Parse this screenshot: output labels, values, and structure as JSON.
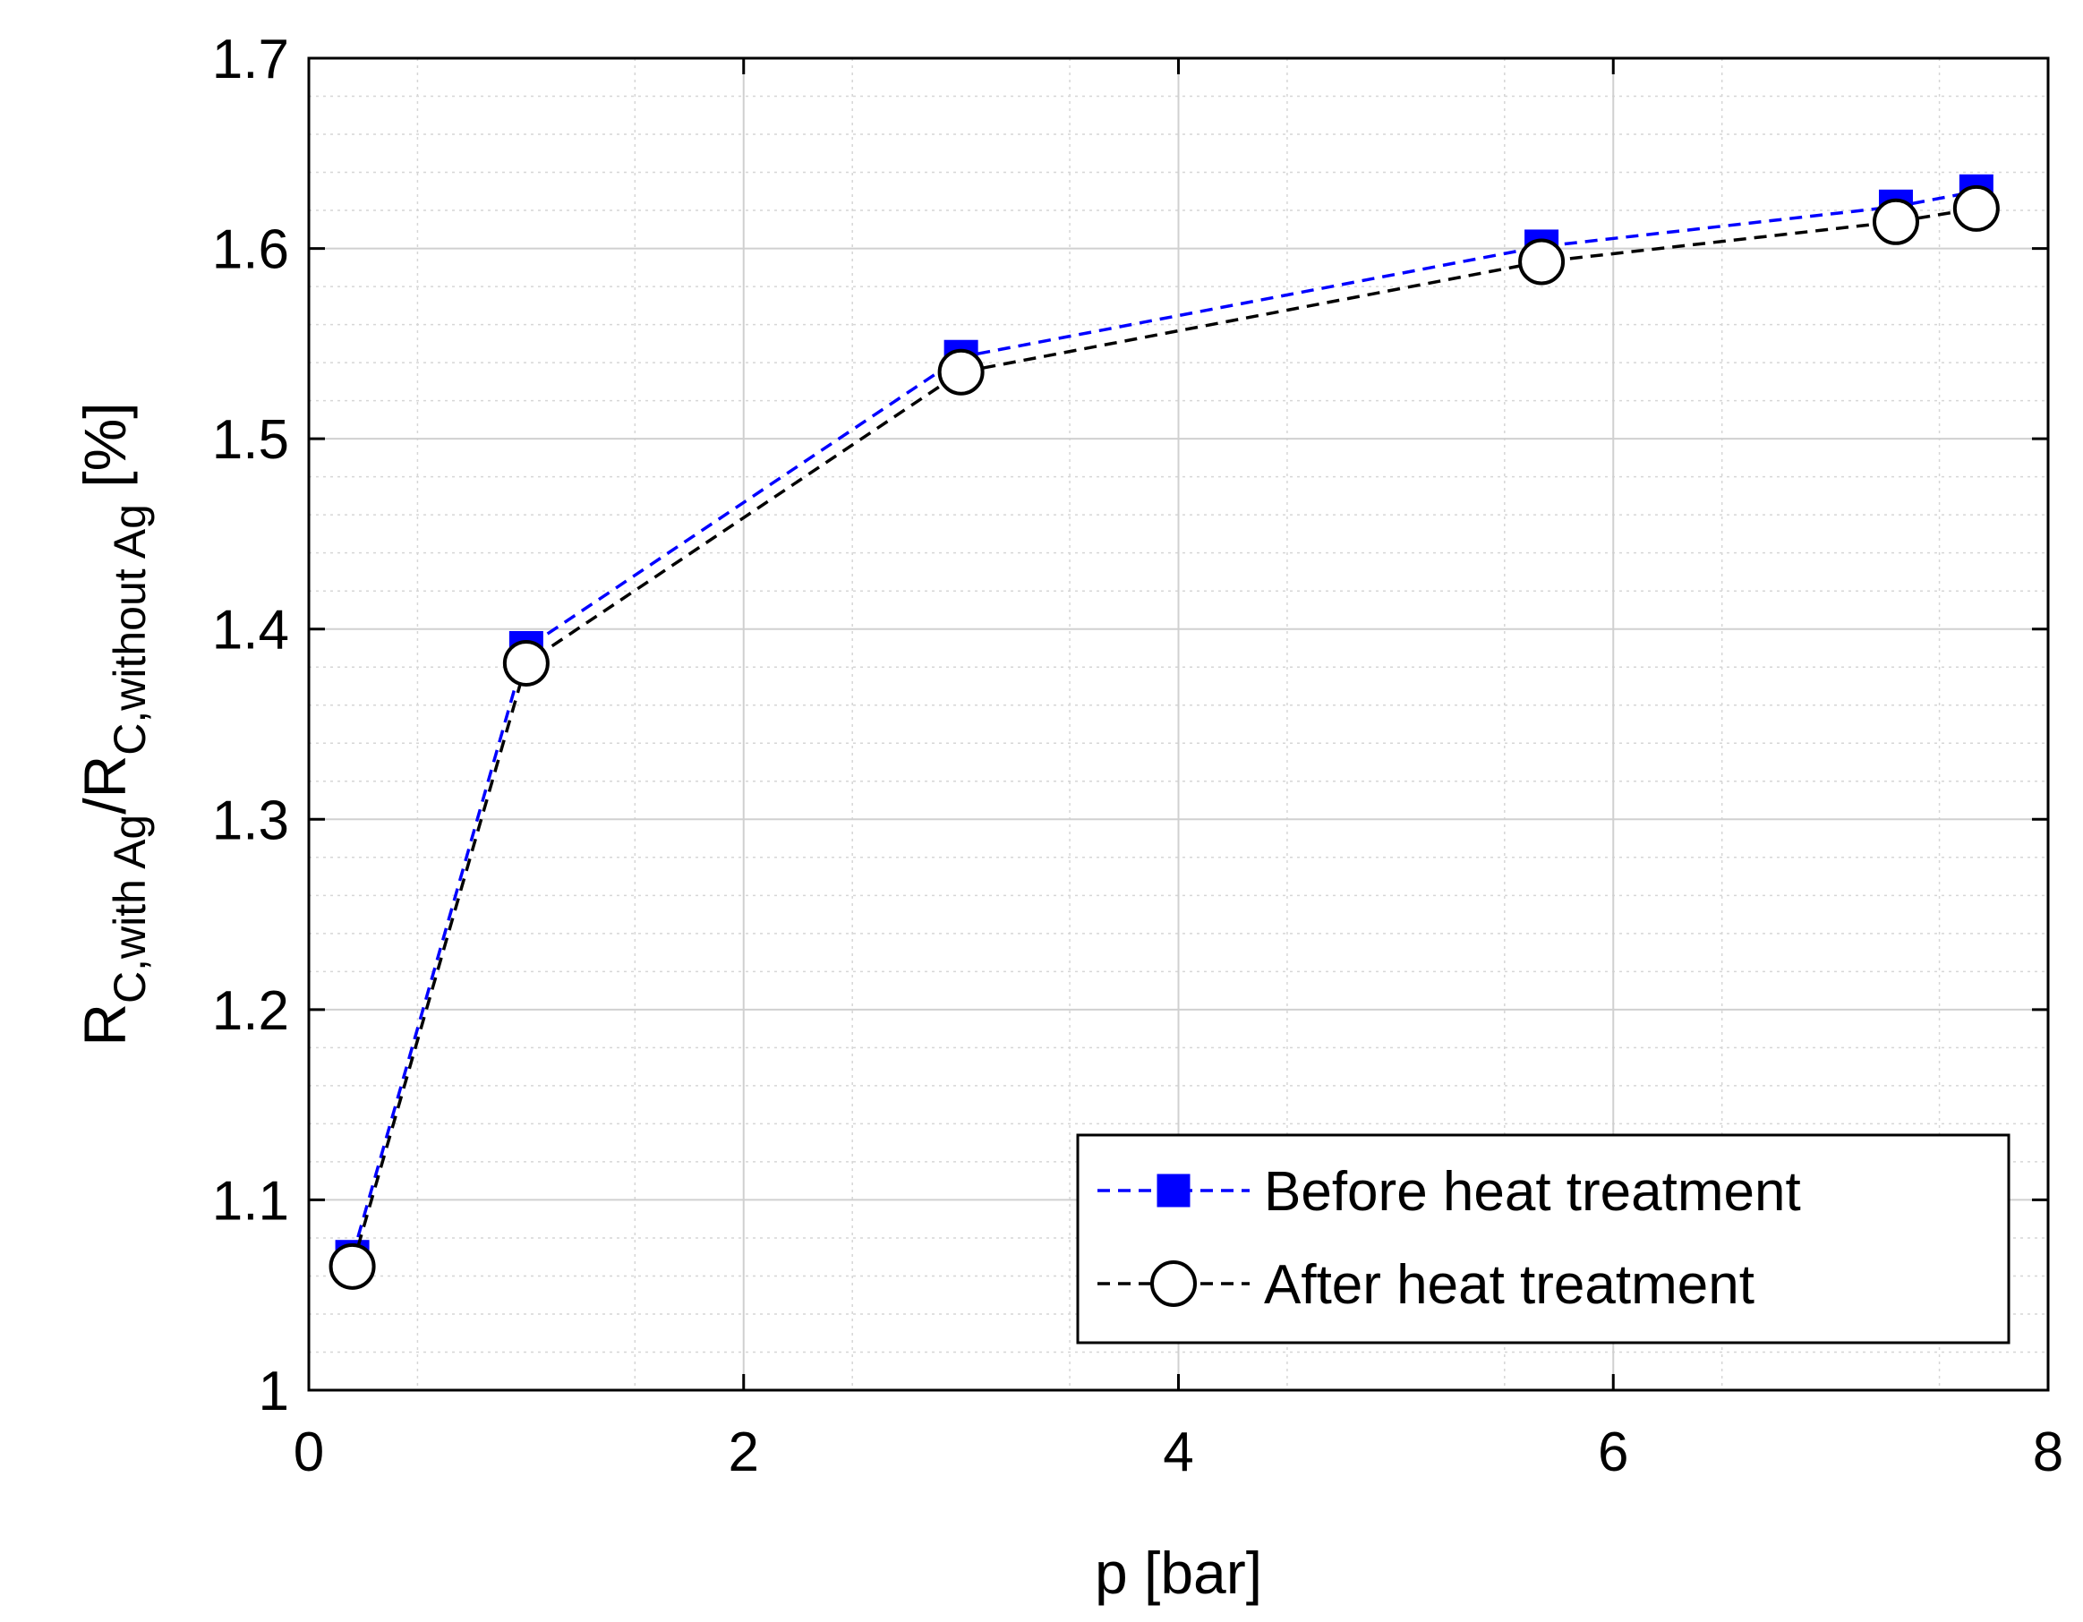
{
  "chart_data": {
    "type": "line",
    "title": "",
    "xlabel": "p [bar]",
    "ylabel": {
      "base1": "R",
      "sub1": "C,with Ag",
      "sep": "/R",
      "sub2": "C,without Ag",
      "unit": " [%]"
    },
    "xlim": [
      0,
      8
    ],
    "ylim": [
      1,
      1.7
    ],
    "xticks": [
      0,
      2,
      4,
      6,
      8
    ],
    "xtick_labels": [
      "0",
      "2",
      "4",
      "6",
      "8"
    ],
    "yticks": [
      1,
      1.1,
      1.2,
      1.3,
      1.4,
      1.5,
      1.6,
      1.7
    ],
    "ytick_labels": [
      "1",
      "1.1",
      "1.2",
      "1.3",
      "1.4",
      "1.5",
      "1.6",
      "1.7"
    ],
    "grid": true,
    "minor_grid": true,
    "legend_position": "bottom-right",
    "series": [
      {
        "name": "Before heat treatment",
        "color": "#0000ff",
        "marker": "square",
        "line_style": "dashed",
        "x": [
          0.2,
          1.0,
          3.0,
          5.67,
          7.3,
          7.67
        ],
        "y": [
          1.07,
          1.39,
          1.543,
          1.601,
          1.622,
          1.63
        ]
      },
      {
        "name": "After heat treatment",
        "color": "#000000",
        "marker": "circle-open",
        "line_style": "dashed",
        "x": [
          0.2,
          1.0,
          3.0,
          5.67,
          7.3,
          7.67
        ],
        "y": [
          1.065,
          1.382,
          1.535,
          1.593,
          1.614,
          1.621
        ]
      }
    ]
  }
}
